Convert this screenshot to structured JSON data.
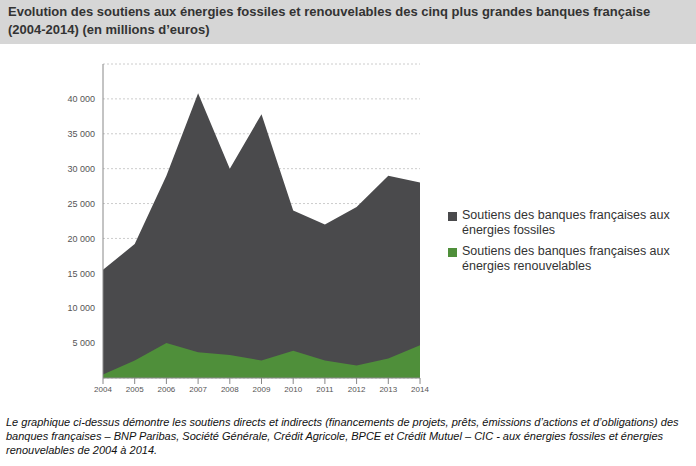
{
  "chart_data": {
    "type": "area",
    "title": "Evolution des soutiens aux énergies fossiles et renouvelables des cinq plus grandes banques française (2004-2014) (en millions d’euros)",
    "caption": "Le graphique ci-dessus démontre les soutiens directs et indirects (financements de projets, prêts, émissions d’actions et d’obligations) des banques françaises – BNP Paribas, Société Générale, Crédit Agricole, BPCE et Crédit Mutuel – CIC - aux énergies fossiles et énergies renouvelables de 2004 à 2014.",
    "x": [
      2004,
      2005,
      2006,
      2007,
      2008,
      2009,
      2010,
      2011,
      2012,
      2013,
      2014
    ],
    "xlim": [
      2004,
      2014
    ],
    "xticks": [
      2004,
      2005,
      2006,
      2007,
      2008,
      2009,
      2010,
      2011,
      2012,
      2013,
      2014
    ],
    "ylim": [
      0,
      45000
    ],
    "yticks": [
      {
        "value": 5000,
        "label": "5 000"
      },
      {
        "value": 10000,
        "label": "10 000"
      },
      {
        "value": 15000,
        "label": "15 000"
      },
      {
        "value": 20000,
        "label": "20 000"
      },
      {
        "value": 25000,
        "label": "25 000"
      },
      {
        "value": 30000,
        "label": "30 000"
      },
      {
        "value": 35000,
        "label": "35 000"
      },
      {
        "value": 40000,
        "label": "40 000"
      }
    ],
    "grid": true,
    "legend": "right",
    "stacked": false,
    "series": [
      {
        "name": "Soutiens des banques françaises aux énergies fossiles",
        "color": "#4a4a4c",
        "values": [
          15500,
          19200,
          29000,
          40800,
          30000,
          37800,
          24000,
          22000,
          24500,
          29000,
          28000
        ]
      },
      {
        "name": "Soutiens des banques françaises aux énergies renouvelables",
        "color": "#4f8f3a",
        "values": [
          500,
          2500,
          5000,
          3700,
          3300,
          2500,
          3900,
          2500,
          1800,
          2800,
          4700
        ]
      }
    ]
  }
}
